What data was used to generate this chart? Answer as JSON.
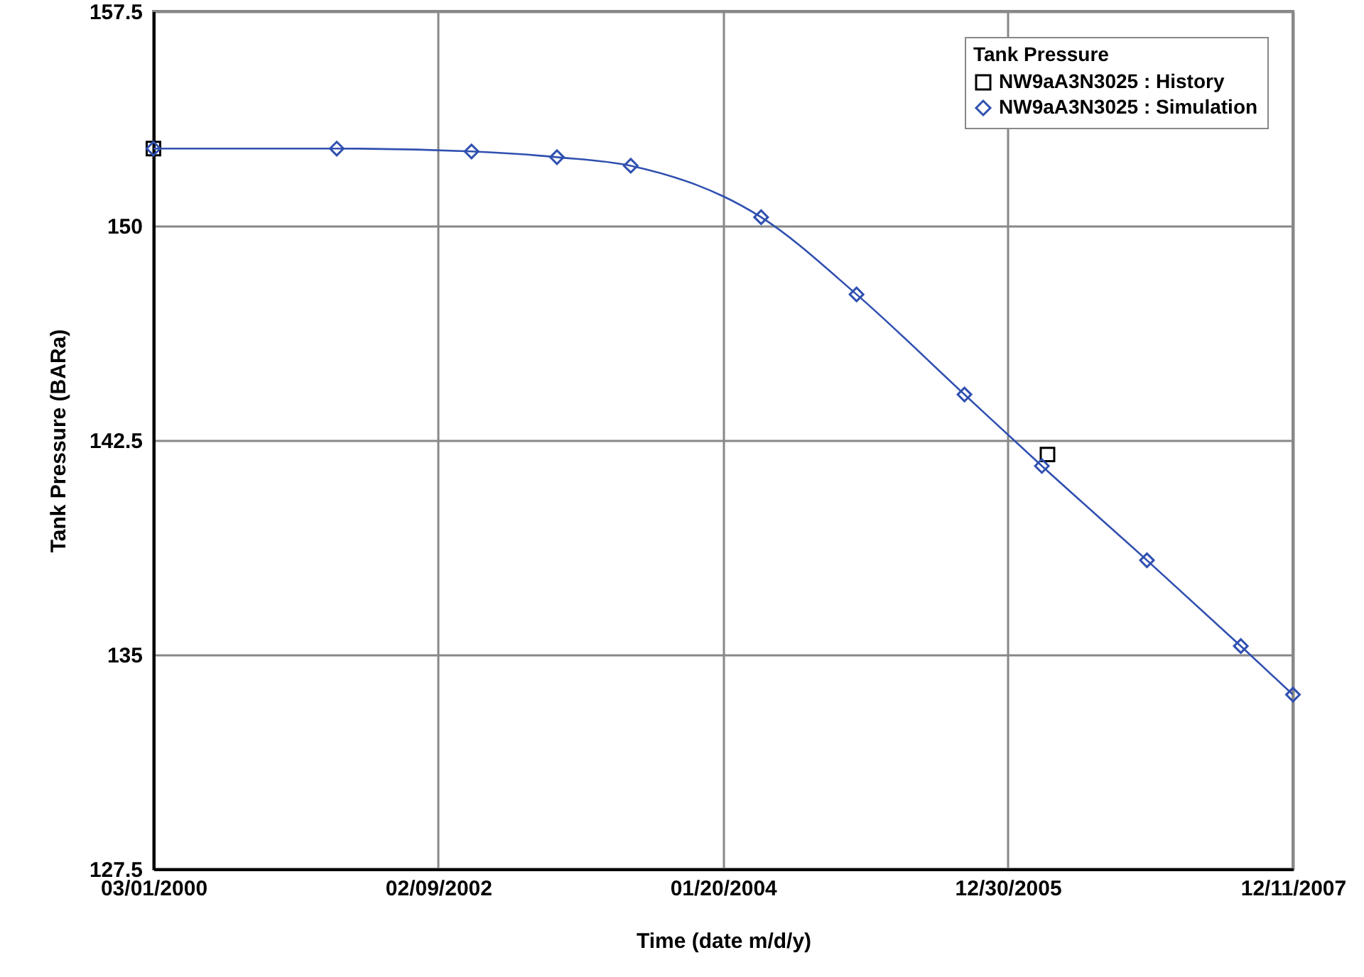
{
  "chart_data": {
    "type": "line",
    "xlabel": "Time (date m/d/y)",
    "ylabel": "Tank Pressure (BARa)",
    "legend_title": "Tank Pressure",
    "xlim": [
      "2000-03-01",
      "2007-12-11"
    ],
    "xticks": [
      {
        "value": "2000-03-01",
        "label": "03/01/2000"
      },
      {
        "value": "2002-02-09",
        "label": "02/09/2002"
      },
      {
        "value": "2004-01-20",
        "label": "01/20/2004"
      },
      {
        "value": "2005-12-30",
        "label": "12/30/2005"
      },
      {
        "value": "2007-12-11",
        "label": "12/11/2007"
      }
    ],
    "ylim": [
      127.5,
      157.5
    ],
    "yticks": [
      127.5,
      135,
      142.5,
      150,
      157.5
    ],
    "grid": true,
    "legend": "top right",
    "series": [
      {
        "name": "NW9aA3N3025 : History",
        "type": "scatter",
        "marker": "square",
        "color": "#000000",
        "x": [
          "2000-03-01",
          "2006-04-08"
        ],
        "values": [
          152.7,
          142.0
        ]
      },
      {
        "name": "NW9aA3N3025 : Simulation",
        "type": "line",
        "marker": "diamond",
        "color": "#3050b0",
        "x": [
          "2000-03-01",
          "2001-06-01",
          "2002-05-03",
          "2002-12-02",
          "2003-06-04",
          "2004-04-24",
          "2004-12-18",
          "2005-09-13",
          "2006-03-25",
          "2006-12-12",
          "2007-08-03",
          "2007-12-11"
        ],
        "values": [
          152.7,
          152.7,
          152.6,
          152.4,
          152.1,
          150.3,
          147.6,
          144.1,
          141.6,
          138.3,
          135.3,
          133.6
        ]
      }
    ]
  }
}
